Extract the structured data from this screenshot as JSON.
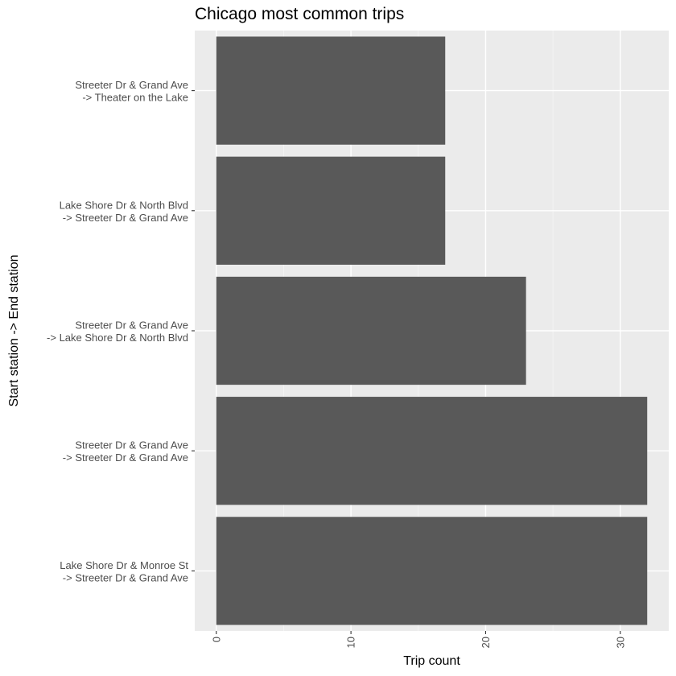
{
  "chart_data": {
    "type": "bar",
    "orientation": "horizontal",
    "title": "Chicago most common trips",
    "xlabel": "Trip count",
    "ylabel": "Start station -> End station",
    "categories": [
      [
        "Streeter Dr & Grand Ave",
        "-> Theater on the Lake"
      ],
      [
        "Lake Shore Dr & North Blvd",
        "-> Streeter Dr & Grand Ave"
      ],
      [
        "Streeter Dr & Grand Ave",
        "-> Lake Shore Dr & North Blvd"
      ],
      [
        "Streeter Dr & Grand Ave",
        "-> Streeter Dr & Grand Ave"
      ],
      [
        "Lake Shore Dr & Monroe St",
        "-> Streeter Dr & Grand Ave"
      ]
    ],
    "values": [
      17,
      17,
      23,
      32,
      32
    ],
    "xlim": [
      -1.6,
      33.6
    ],
    "xticks": [
      0,
      10,
      20,
      30
    ],
    "xtick_labels": [
      "0",
      "10",
      "20",
      "30"
    ],
    "minor_xticks": [
      5,
      15,
      25
    ],
    "grid": true,
    "colors": {
      "bar": "#595959",
      "panel_background": "#ebebeb",
      "grid_major": "#ffffff",
      "grid_minor": "#f5f5f5",
      "tick": "#333333"
    }
  }
}
